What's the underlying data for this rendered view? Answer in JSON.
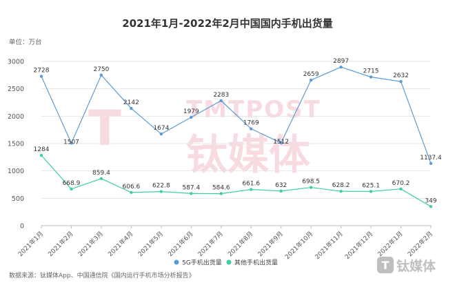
{
  "chart_data": {
    "type": "line",
    "title": "2021年1月-2022年2月中国国内手机出货量",
    "unit_label": "单位：万台",
    "categories": [
      "2021年1月",
      "2021年2月",
      "2021年3月",
      "2021年4月",
      "2021年5月",
      "2021年6月",
      "2021年7月",
      "2021年8月",
      "2021年9月",
      "2021年10月",
      "2021年11月",
      "2021年12月",
      "2022年1月",
      "2022年2月"
    ],
    "series": [
      {
        "name": "5G手机出货量",
        "color": "#5b9bd5",
        "values": [
          2728,
          1507,
          2750,
          2142,
          1674,
          1979,
          2283,
          1769,
          1512,
          2659,
          2897,
          2715,
          2632,
          1137.4
        ],
        "labels": [
          "2728",
          "1507",
          "2750",
          "2142",
          "1674",
          "1979",
          "2283",
          "1769",
          "1512",
          "2659",
          "2897",
          "2715",
          "2632",
          "1137.4"
        ]
      },
      {
        "name": "其他手机出货量",
        "color": "#3ecf9a",
        "values": [
          1284,
          668.9,
          859.4,
          606.6,
          622.8,
          587.4,
          584.6,
          661.6,
          632,
          698.5,
          628.2,
          625.1,
          670.2,
          349
        ],
        "labels": [
          "1284",
          "668.9",
          "859.4",
          "606.6",
          "622.8",
          "587.4",
          "584.6",
          "661.6",
          "632",
          "698.5",
          "628.2",
          "625.1",
          "670.2",
          "349"
        ]
      }
    ],
    "yticks": [
      "0",
      "500",
      "1000",
      "1500",
      "2000",
      "2500",
      "3000"
    ],
    "ylim": [
      0,
      3000
    ],
    "grid": true,
    "legend_position": "bottom",
    "source": "数据来源：钛媒体App、中国通信院《国内运行手机市场分析报告》",
    "watermark_main": "钛媒体",
    "watermark_en": "TMTPOST",
    "watermark_logo_glyph": "T",
    "brand_logo_text": "钛媒体",
    "brand_logo_glyph": "T"
  }
}
